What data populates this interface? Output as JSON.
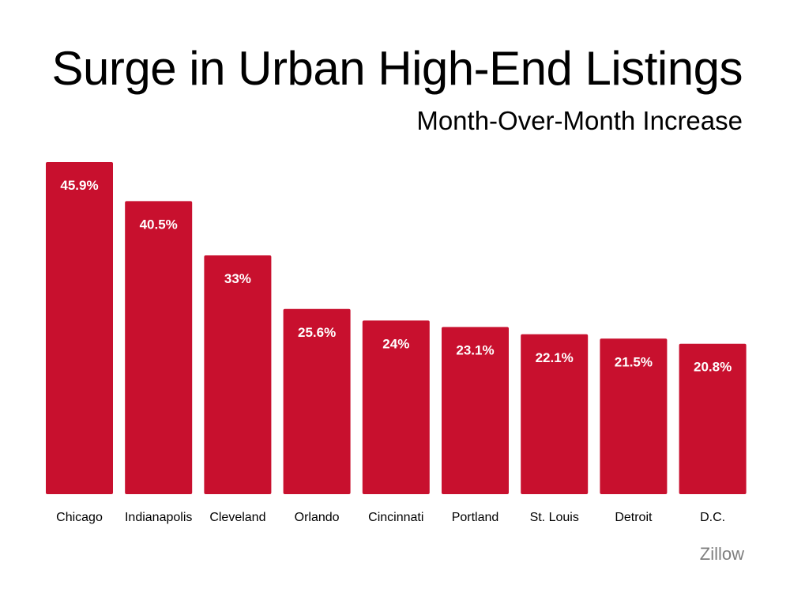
{
  "colors": {
    "bar": "#c8102e",
    "bar_label": "#ffffff",
    "category_label": "#000000",
    "source": "#7f7f7f"
  },
  "source": "Zillow",
  "chart_data": {
    "type": "bar",
    "title": "Surge in Urban High-End Listings",
    "subtitle": "Month-Over-Month Increase",
    "categories": [
      "Chicago",
      "Indianapolis",
      "Cleveland",
      "Orlando",
      "Cincinnati",
      "Portland",
      "St. Louis",
      "Detroit",
      "D.C."
    ],
    "values": [
      45.9,
      40.5,
      33,
      25.6,
      24,
      23.1,
      22.1,
      21.5,
      20.8
    ],
    "value_labels": [
      "45.9%",
      "40.5%",
      "33%",
      "25.6%",
      "24%",
      "23.1%",
      "22.1%",
      "21.5%",
      "20.8%"
    ],
    "xlabel": "",
    "ylabel": "",
    "ylim": [
      0,
      45.9
    ],
    "grid": false,
    "legend": "none"
  }
}
